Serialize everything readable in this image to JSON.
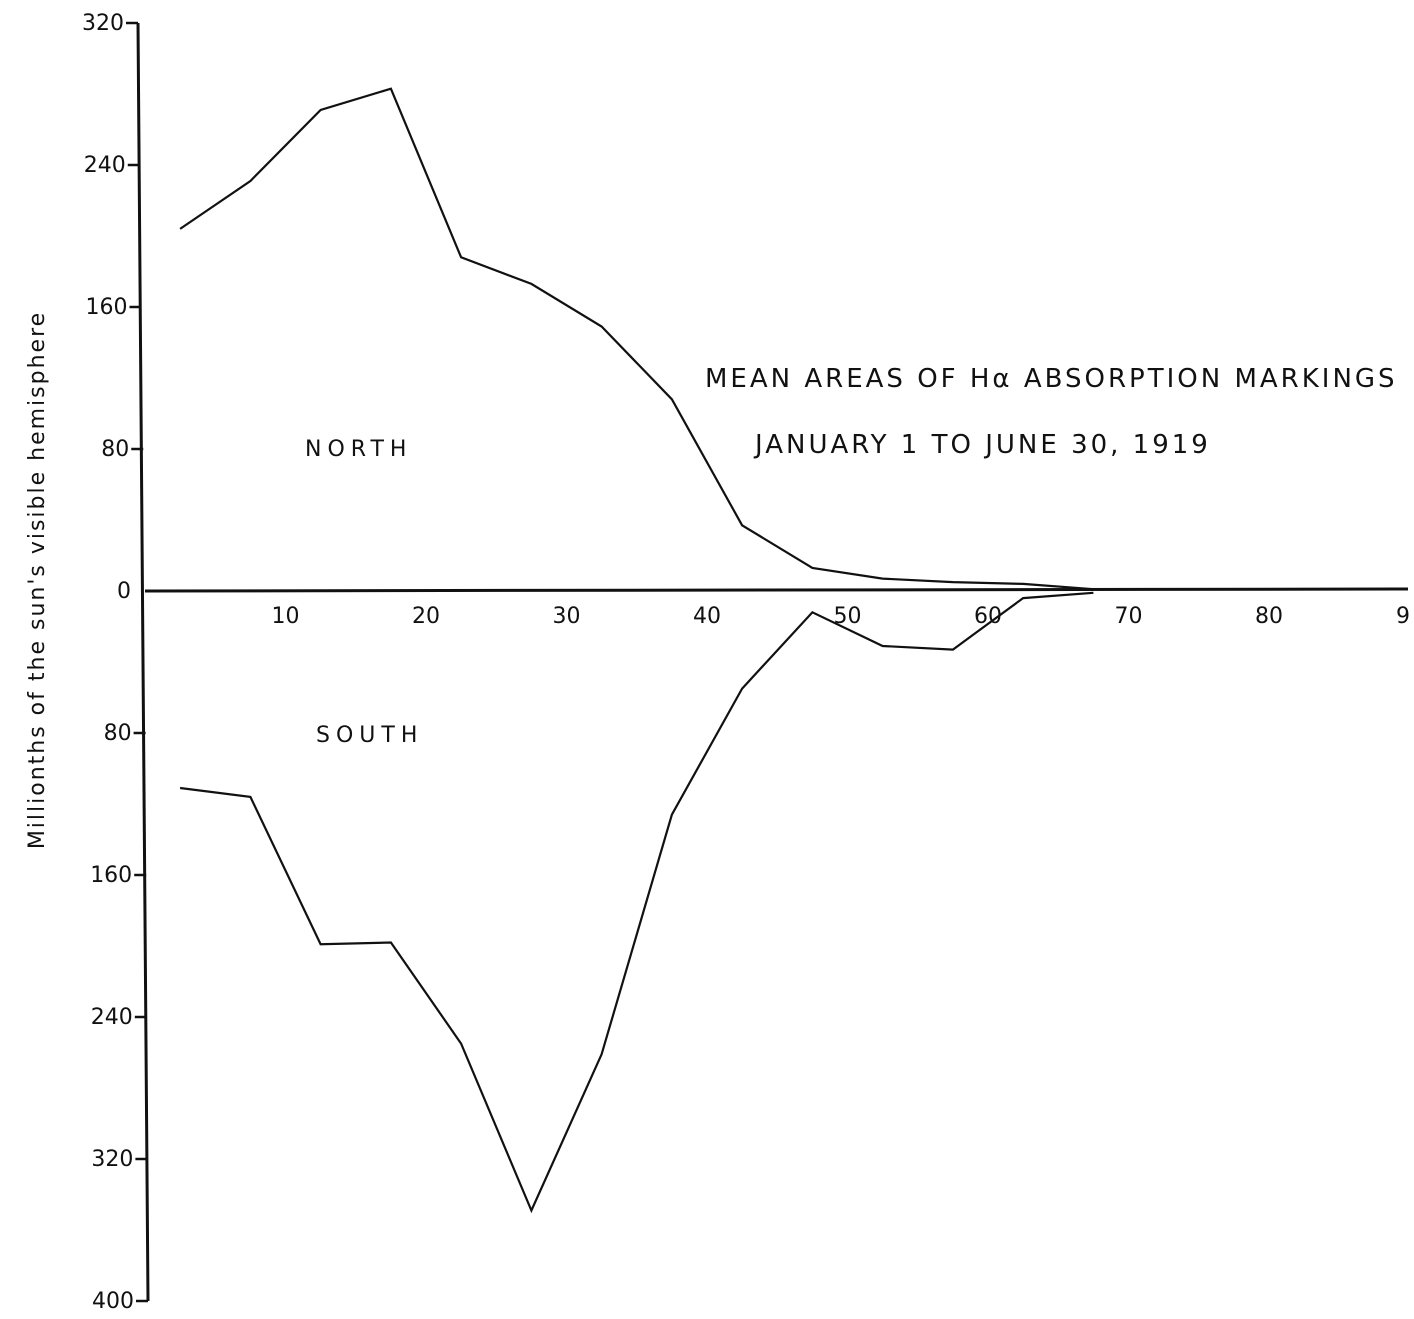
{
  "chart_data": {
    "type": "line",
    "title": [
      "MEAN AREAS OF Hα ABSORPTION MARKINGS",
      "JANUARY 1 TO JUNE 30, 1919"
    ],
    "ylabel": "Millionths of the sun's visible hemisphere",
    "x_tick_labels": [
      "10",
      "20",
      "30",
      "40",
      "50",
      "60",
      "70",
      "80",
      "9"
    ],
    "y_tick_labels_north": [
      "320",
      "240",
      "160",
      "80",
      "0"
    ],
    "y_tick_labels_south": [
      "80",
      "160",
      "240",
      "320",
      "400"
    ],
    "xlim": [
      0,
      90
    ],
    "ylim_north": [
      0,
      320
    ],
    "ylim_south": [
      0,
      400
    ],
    "series": [
      {
        "name": "NORTH",
        "x": [
          2.5,
          7.5,
          12.5,
          17.5,
          22.5,
          27.5,
          32.5,
          37.5,
          42.5,
          47.5,
          52.5,
          57.5,
          62.5,
          67.5
        ],
        "values": [
          204,
          231,
          271,
          283,
          188,
          173,
          149,
          108,
          37,
          13,
          7,
          5,
          4,
          1
        ]
      },
      {
        "name": "SOUTH",
        "x": [
          2.5,
          7.5,
          12.5,
          17.5,
          22.5,
          27.5,
          32.5,
          37.5,
          42.5,
          47.5,
          52.5,
          57.5,
          62.5,
          67.5
        ],
        "values": [
          111,
          116,
          199,
          198,
          255,
          349,
          261,
          126,
          55,
          12,
          31,
          33,
          4,
          1
        ]
      }
    ]
  }
}
